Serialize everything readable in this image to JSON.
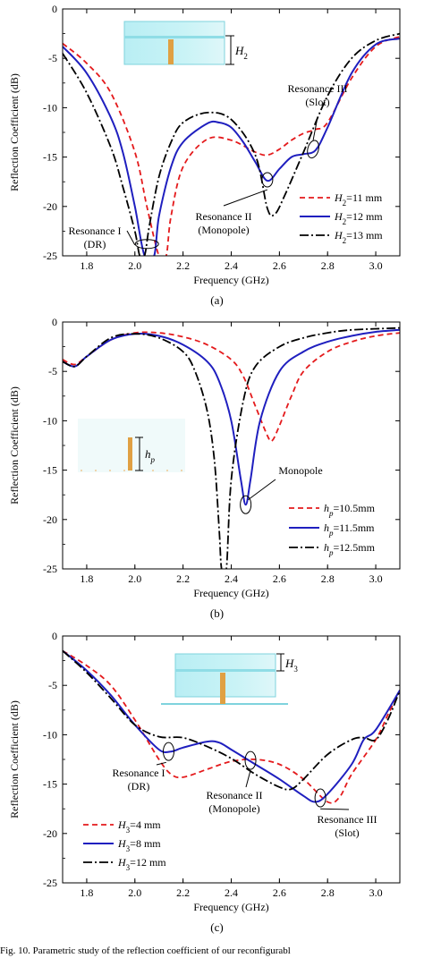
{
  "caption": "Fig. 10.   Parametric study of the reflection coefficient of our reconfigurabl",
  "chart_data": [
    {
      "type": "line",
      "panel_label": "(a)",
      "xlabel": "Frequency (GHz)",
      "ylabel": "Reflection Coefficient (dB)",
      "xlim": [
        1.7,
        3.1
      ],
      "ylim": [
        -25,
        0
      ],
      "xticks": [
        1.8,
        2.0,
        2.2,
        2.4,
        2.6,
        2.8,
        3.0
      ],
      "yticks": [
        0,
        -5,
        -10,
        -15,
        -20,
        -25
      ],
      "grid": false,
      "legend_position": "bottom-right",
      "inset_label": "H2",
      "series": [
        {
          "name_main": "H",
          "name_sub": "2",
          "name_rest": "=11 mm",
          "color": "#e41a1c",
          "dash": "red-dash",
          "points": [
            [
              1.7,
              -3.5
            ],
            [
              1.8,
              -5.5
            ],
            [
              1.9,
              -8.5
            ],
            [
              2.0,
              -14.5
            ],
            [
              2.05,
              -20
            ],
            [
              2.1,
              -25
            ],
            [
              2.13,
              -25
            ],
            [
              2.15,
              -21
            ],
            [
              2.2,
              -16
            ],
            [
              2.3,
              -13.2
            ],
            [
              2.4,
              -13.3
            ],
            [
              2.5,
              -14.5
            ],
            [
              2.55,
              -14.8
            ],
            [
              2.6,
              -14.2
            ],
            [
              2.65,
              -13.3
            ],
            [
              2.7,
              -12.6
            ],
            [
              2.75,
              -12.2
            ],
            [
              2.8,
              -11.5
            ],
            [
              2.9,
              -7
            ],
            [
              3.0,
              -3.8
            ],
            [
              3.1,
              -2.8
            ]
          ]
        },
        {
          "name_main": "H",
          "name_sub": "2",
          "name_rest": "=12 mm",
          "color": "#1f1fbf",
          "dash": "solid",
          "points": [
            [
              1.7,
              -3.8
            ],
            [
              1.8,
              -6.5
            ],
            [
              1.9,
              -11
            ],
            [
              1.95,
              -14.5
            ],
            [
              2.0,
              -20
            ],
            [
              2.04,
              -25
            ],
            [
              2.08,
              -25
            ],
            [
              2.1,
              -21
            ],
            [
              2.15,
              -16
            ],
            [
              2.2,
              -13.5
            ],
            [
              2.3,
              -11.6
            ],
            [
              2.35,
              -11.5
            ],
            [
              2.4,
              -12
            ],
            [
              2.45,
              -13.5
            ],
            [
              2.5,
              -15.5
            ],
            [
              2.55,
              -17.4
            ],
            [
              2.6,
              -16.2
            ],
            [
              2.65,
              -15
            ],
            [
              2.7,
              -14.7
            ],
            [
              2.75,
              -14.3
            ],
            [
              2.8,
              -12
            ],
            [
              2.9,
              -6.5
            ],
            [
              3.0,
              -3.6
            ],
            [
              3.1,
              -3.0
            ]
          ]
        },
        {
          "name_main": "H",
          "name_sub": "2",
          "name_rest": "=13 mm",
          "color": "#000000",
          "dash": "dashdot",
          "points": [
            [
              1.7,
              -4.5
            ],
            [
              1.8,
              -8.5
            ],
            [
              1.9,
              -14
            ],
            [
              1.95,
              -18
            ],
            [
              2.0,
              -22.5
            ],
            [
              2.02,
              -25
            ],
            [
              2.04,
              -25
            ],
            [
              2.06,
              -22
            ],
            [
              2.1,
              -17
            ],
            [
              2.15,
              -13.5
            ],
            [
              2.2,
              -11.5
            ],
            [
              2.3,
              -10.5
            ],
            [
              2.4,
              -11.2
            ],
            [
              2.5,
              -14.8
            ],
            [
              2.55,
              -20.2
            ],
            [
              2.58,
              -20.8
            ],
            [
              2.62,
              -19
            ],
            [
              2.7,
              -14.5
            ],
            [
              2.8,
              -8.8
            ],
            [
              2.9,
              -5
            ],
            [
              3.0,
              -3.2
            ],
            [
              3.1,
              -2.5
            ]
          ]
        }
      ],
      "annotations": [
        {
          "lines": [
            "Resonance III",
            "(Slot)"
          ]
        },
        {
          "lines": [
            "Resonance I",
            "(DR)"
          ]
        },
        {
          "lines": [
            "Resonance II",
            "(Monopole)"
          ]
        }
      ]
    },
    {
      "type": "line",
      "panel_label": "(b)",
      "xlabel": "Frequency (GHz)",
      "ylabel": "Reflection Coefficient (dB)",
      "xlim": [
        1.7,
        3.1
      ],
      "ylim": [
        -25,
        0
      ],
      "xticks": [
        1.8,
        2.0,
        2.2,
        2.4,
        2.6,
        2.8,
        3.0
      ],
      "yticks": [
        0,
        -5,
        -10,
        -15,
        -20,
        -25
      ],
      "grid": false,
      "legend_position": "bottom-right",
      "inset_label": "hp",
      "series": [
        {
          "name_main": "h",
          "name_sub": "p",
          "name_rest": "=10.5mm",
          "color": "#e41a1c",
          "dash": "red-dash",
          "points": [
            [
              1.7,
              -3.8
            ],
            [
              1.75,
              -4.3
            ],
            [
              1.8,
              -3.5
            ],
            [
              1.9,
              -1.8
            ],
            [
              2.0,
              -1.1
            ],
            [
              2.1,
              -1.1
            ],
            [
              2.2,
              -1.5
            ],
            [
              2.3,
              -2.3
            ],
            [
              2.4,
              -3.8
            ],
            [
              2.45,
              -5.5
            ],
            [
              2.5,
              -8.5
            ],
            [
              2.55,
              -11.5
            ],
            [
              2.57,
              -12
            ],
            [
              2.6,
              -10.5
            ],
            [
              2.65,
              -7.5
            ],
            [
              2.7,
              -5
            ],
            [
              2.8,
              -3
            ],
            [
              2.9,
              -2
            ],
            [
              3.0,
              -1.4
            ],
            [
              3.1,
              -1.1
            ]
          ]
        },
        {
          "name_main": "h",
          "name_sub": "p",
          "name_rest": "=11.5mm",
          "color": "#1f1fbf",
          "dash": "solid",
          "points": [
            [
              1.7,
              -4
            ],
            [
              1.75,
              -4.5
            ],
            [
              1.8,
              -3.5
            ],
            [
              1.9,
              -1.8
            ],
            [
              2.0,
              -1.2
            ],
            [
              2.1,
              -1.4
            ],
            [
              2.2,
              -2.3
            ],
            [
              2.3,
              -4
            ],
            [
              2.35,
              -6
            ],
            [
              2.4,
              -10
            ],
            [
              2.44,
              -16
            ],
            [
              2.46,
              -18.5
            ],
            [
              2.48,
              -16
            ],
            [
              2.52,
              -10
            ],
            [
              2.6,
              -5
            ],
            [
              2.7,
              -3
            ],
            [
              2.8,
              -2
            ],
            [
              2.9,
              -1.4
            ],
            [
              3.0,
              -1
            ],
            [
              3.1,
              -0.8
            ]
          ]
        },
        {
          "name_main": "h",
          "name_sub": "p",
          "name_rest": "=12.5mm",
          "color": "#000000",
          "dash": "dashdot",
          "points": [
            [
              1.7,
              -4
            ],
            [
              1.75,
              -4.5
            ],
            [
              1.8,
              -3.5
            ],
            [
              1.9,
              -1.6
            ],
            [
              2.0,
              -1.2
            ],
            [
              2.1,
              -1.6
            ],
            [
              2.2,
              -3
            ],
            [
              2.25,
              -5
            ],
            [
              2.3,
              -9
            ],
            [
              2.33,
              -14
            ],
            [
              2.35,
              -21
            ],
            [
              2.36,
              -25
            ],
            [
              2.38,
              -25
            ],
            [
              2.4,
              -16
            ],
            [
              2.45,
              -8
            ],
            [
              2.5,
              -4.5
            ],
            [
              2.6,
              -2.5
            ],
            [
              2.7,
              -1.6
            ],
            [
              2.8,
              -1.1
            ],
            [
              2.9,
              -0.8
            ],
            [
              3.1,
              -0.6
            ]
          ]
        }
      ],
      "annotations": [
        {
          "lines": [
            "Monopole"
          ]
        }
      ]
    },
    {
      "type": "line",
      "panel_label": "(c)",
      "xlabel": "Frequency (GHz)",
      "ylabel": "Reflection Coefficient (dB)",
      "xlim": [
        1.7,
        3.1
      ],
      "ylim": [
        -25,
        0
      ],
      "xticks": [
        1.8,
        2.0,
        2.2,
        2.4,
        2.6,
        2.8,
        3.0
      ],
      "yticks": [
        0,
        -5,
        -10,
        -15,
        -20,
        -25
      ],
      "grid": false,
      "legend_position": "bottom-left",
      "inset_label": "H3",
      "series": [
        {
          "name_main": "H",
          "name_sub": "3",
          "name_rest": "=4 mm",
          "color": "#e41a1c",
          "dash": "red-dash",
          "points": [
            [
              1.7,
              -1.5
            ],
            [
              1.8,
              -3
            ],
            [
              1.9,
              -5
            ],
            [
              2.0,
              -8.5
            ],
            [
              2.1,
              -12.5
            ],
            [
              2.15,
              -14
            ],
            [
              2.2,
              -14.3
            ],
            [
              2.3,
              -13.5
            ],
            [
              2.4,
              -12.7
            ],
            [
              2.5,
              -12.5
            ],
            [
              2.6,
              -13
            ],
            [
              2.7,
              -14.5
            ],
            [
              2.8,
              -16.8
            ],
            [
              2.85,
              -16.3
            ],
            [
              2.9,
              -14
            ],
            [
              3.0,
              -10.5
            ],
            [
              3.05,
              -8
            ],
            [
              3.1,
              -5.5
            ]
          ]
        },
        {
          "name_main": "H",
          "name_sub": "3",
          "name_rest": "=8 mm",
          "color": "#1f1fbf",
          "dash": "solid",
          "points": [
            [
              1.7,
              -1.5
            ],
            [
              1.8,
              -3.5
            ],
            [
              1.9,
              -6
            ],
            [
              2.0,
              -9
            ],
            [
              2.1,
              -11.5
            ],
            [
              2.15,
              -11.7
            ],
            [
              2.2,
              -11.3
            ],
            [
              2.3,
              -10.7
            ],
            [
              2.35,
              -10.8
            ],
            [
              2.4,
              -11.5
            ],
            [
              2.5,
              -13
            ],
            [
              2.6,
              -14.5
            ],
            [
              2.7,
              -16.2
            ],
            [
              2.75,
              -16.8
            ],
            [
              2.8,
              -16
            ],
            [
              2.9,
              -13
            ],
            [
              2.95,
              -10.5
            ],
            [
              3.0,
              -9.5
            ],
            [
              3.1,
              -5.5
            ]
          ]
        },
        {
          "name_main": "H",
          "name_sub": "3",
          "name_rest": "=12 mm",
          "color": "#000000",
          "dash": "dashdot",
          "points": [
            [
              1.7,
              -1.5
            ],
            [
              1.8,
              -3.7
            ],
            [
              1.9,
              -6.3
            ],
            [
              2.0,
              -9
            ],
            [
              2.1,
              -10.2
            ],
            [
              2.2,
              -10.3
            ],
            [
              2.3,
              -11.2
            ],
            [
              2.4,
              -12.4
            ],
            [
              2.5,
              -14
            ],
            [
              2.6,
              -15.3
            ],
            [
              2.65,
              -15.5
            ],
            [
              2.7,
              -14.5
            ],
            [
              2.8,
              -12
            ],
            [
              2.9,
              -10.5
            ],
            [
              2.95,
              -10.3
            ],
            [
              3.0,
              -10.5
            ],
            [
              3.05,
              -8.5
            ],
            [
              3.1,
              -5.5
            ]
          ]
        }
      ],
      "annotations": [
        {
          "lines": [
            "Resonance I",
            "(DR)"
          ]
        },
        {
          "lines": [
            "Resonance II",
            "(Monopole)"
          ]
        },
        {
          "lines": [
            "Resonance III",
            "(Slot)"
          ]
        }
      ]
    }
  ]
}
